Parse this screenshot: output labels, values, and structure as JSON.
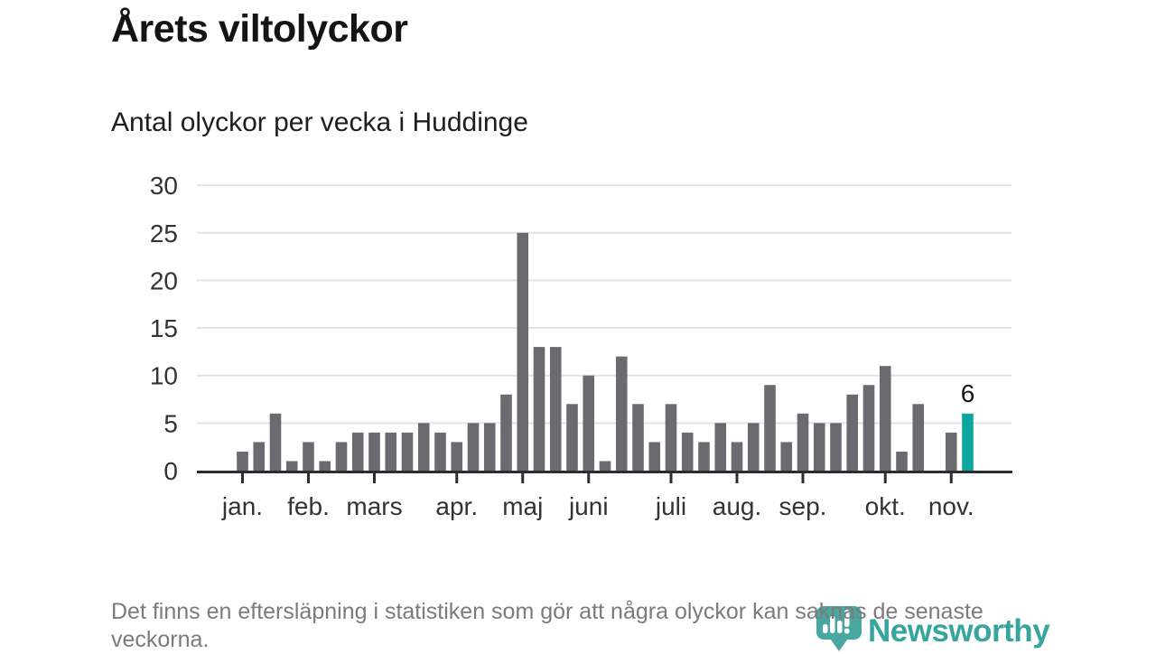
{
  "header": {
    "title": "Årets viltolyckor",
    "subtitle": "Antal olyckor per vecka i Huddinge"
  },
  "footnote": {
    "text": "Det finns en eftersläpning i statistiken som gör att några olyckor kan saknas de senaste veckorna."
  },
  "branding": {
    "logo_text": "Newsworthy",
    "logo_icon": "bar-chart-pin-icon",
    "logo_text_color": "#35a59d",
    "logo_icon_color": "#4aa6a0"
  },
  "chart_data": {
    "type": "bar",
    "title": "Årets viltolyckor",
    "subtitle": "Antal olyckor per vecka i Huddinge",
    "ylabel": "",
    "xlabel": "",
    "ylim": [
      0,
      30
    ],
    "y_ticks": [
      0,
      5,
      10,
      15,
      20,
      25,
      30
    ],
    "grid": true,
    "legend_position": "none",
    "categories_unit": "vecka",
    "values": [
      2,
      3,
      6,
      1,
      3,
      1,
      3,
      4,
      4,
      4,
      4,
      5,
      4,
      3,
      5,
      5,
      8,
      25,
      13,
      13,
      7,
      10,
      1,
      12,
      7,
      3,
      7,
      4,
      3,
      5,
      3,
      5,
      9,
      3,
      6,
      5,
      5,
      8,
      9,
      11,
      2,
      7,
      0,
      4,
      6
    ],
    "month_ticks": [
      {
        "label": "jan.",
        "week_index": 0
      },
      {
        "label": "feb.",
        "week_index": 4
      },
      {
        "label": "mars",
        "week_index": 8
      },
      {
        "label": "apr.",
        "week_index": 13
      },
      {
        "label": "maj",
        "week_index": 17
      },
      {
        "label": "juni",
        "week_index": 21
      },
      {
        "label": "juli",
        "week_index": 26
      },
      {
        "label": "aug.",
        "week_index": 30
      },
      {
        "label": "sep.",
        "week_index": 34
      },
      {
        "label": "okt.",
        "week_index": 39
      },
      {
        "label": "nov.",
        "week_index": 43
      }
    ],
    "highlight_index": 44,
    "highlight_value_label": "6",
    "bar_color": "#6b6a70",
    "highlight_color": "#0aa79e",
    "grid_color": "#e3e3e3",
    "axis_color": "#2d2d2d",
    "tick_label_color": "#333333",
    "value_label_color": "#141414"
  }
}
